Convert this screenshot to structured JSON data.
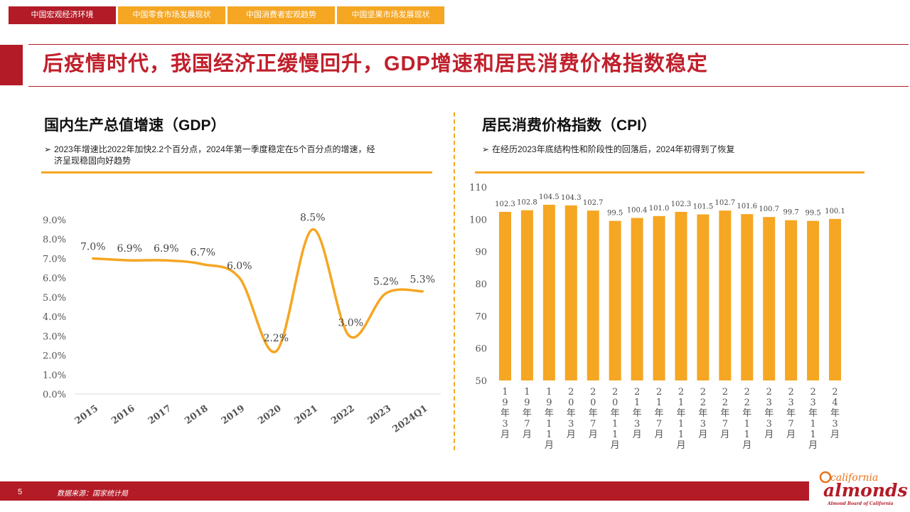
{
  "tabs": [
    "中国宏观经济环境",
    "中国零食市场发展现状",
    "中国消费者宏观趋势",
    "中国坚果市场发展现状"
  ],
  "page_title": "后疫情时代，我国经济正缓慢回升，GDP增速和居民消费价格指数稳定",
  "left": {
    "title": "国内生产总值增速（GDP）",
    "bullet_line1": "2023年增速比2022年加快2.2个百分点，2024年第一季度稳定在5个百分点的增速，经",
    "bullet_line2": "济呈现稳固向好趋势"
  },
  "right": {
    "title": "居民消费价格指数（CPI）",
    "bullet": "在经历2023年底结构性和阶段性的回落后，2024年初得到了恢复"
  },
  "footer": {
    "page": "5",
    "source": "数据来源：国家统计局"
  },
  "logo": {
    "top": "california",
    "main": "almonds",
    "sub": "Almond Board of California"
  },
  "colors": {
    "accent": "#f5a623",
    "brand": "#b31b27"
  },
  "chart_data": [
    {
      "type": "line",
      "categories": [
        "2015",
        "2016",
        "2017",
        "2018",
        "2019",
        "2020",
        "2021",
        "2022",
        "2023",
        "2024Q1"
      ],
      "values": [
        7.0,
        6.9,
        6.9,
        6.7,
        6.0,
        2.2,
        8.5,
        3.0,
        5.2,
        5.3
      ],
      "labels": [
        "7.0%",
        "6.9%",
        "6.9%",
        "6.7%",
        "6.0%",
        "2.2%",
        "8.5%",
        "3.0%",
        "5.2%",
        "5.3%"
      ],
      "yticks": [
        "0.0%",
        "1.0%",
        "2.0%",
        "3.0%",
        "4.0%",
        "5.0%",
        "6.0%",
        "7.0%",
        "8.0%",
        "9.0%"
      ],
      "ylim": [
        0,
        9
      ],
      "grid": false
    },
    {
      "type": "bar",
      "categories": [
        "19年3月",
        "19年7月",
        "19年11月",
        "20年3月",
        "20年7月",
        "20年11月",
        "21年3月",
        "21年7月",
        "21年11月",
        "22年3月",
        "22年7月",
        "22年11月",
        "23年3月",
        "23年7月",
        "23年11月",
        "24年3月"
      ],
      "values": [
        102.3,
        102.8,
        104.5,
        104.3,
        102.7,
        99.5,
        100.4,
        101.0,
        102.3,
        101.5,
        102.7,
        101.6,
        100.7,
        99.7,
        99.5,
        100.1
      ],
      "labels": [
        "102.3",
        "102.8",
        "104.5",
        "104.3",
        "102.7",
        "99.5",
        "100.4",
        "101.0",
        "102.3",
        "101.5",
        "102.7",
        "101.6",
        "100.7",
        "99.7",
        "99.5",
        "100.1"
      ],
      "yticks": [
        "50",
        "60",
        "70",
        "80",
        "90",
        "100",
        "110"
      ],
      "ylim": [
        50,
        110
      ],
      "grid": false
    }
  ]
}
